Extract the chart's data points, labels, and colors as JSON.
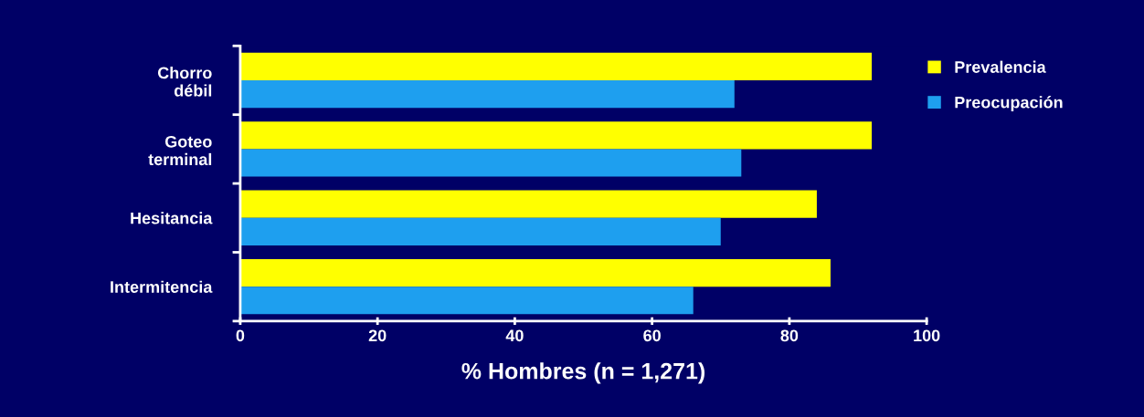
{
  "chart_data": {
    "type": "bar",
    "orientation": "horizontal",
    "xlabel": "% Hombres (n = 1,271)",
    "categories": [
      "Chorro\ndébil",
      "Goteo\nterminal",
      "Hesitancia",
      "Intermitencia"
    ],
    "series": [
      {
        "name": "Prevalencia",
        "color": "#ffff00",
        "values": [
          92,
          92,
          84,
          86
        ]
      },
      {
        "name": "Preocupación",
        "color": "#1e9fef",
        "values": [
          72,
          73,
          70,
          66
        ]
      }
    ],
    "xlim": [
      0,
      100
    ],
    "xticks": [
      0,
      20,
      40,
      60,
      80,
      100
    ],
    "grid": false,
    "legend": "top right"
  }
}
